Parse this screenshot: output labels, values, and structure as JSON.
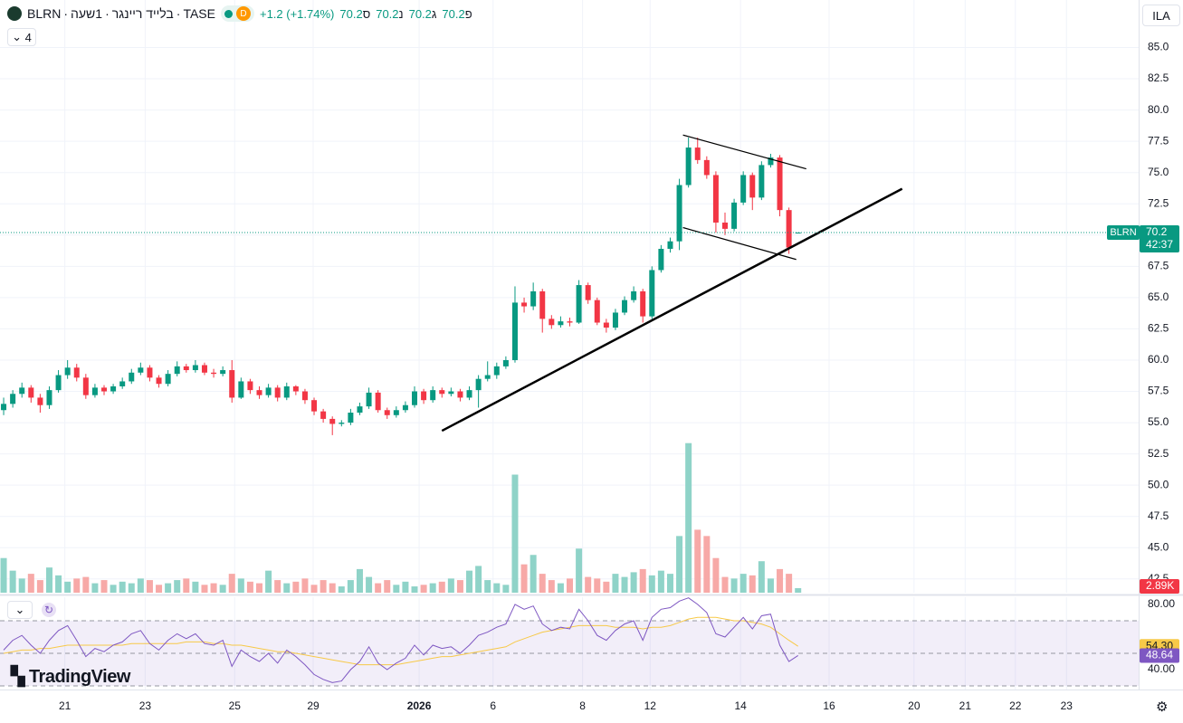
{
  "header": {
    "symbol": "BLRN",
    "name": "בלייד ריינגר",
    "interval": "1שעה",
    "exchange": "TASE",
    "badge": "D",
    "change": "+1.2 (+1.74%)",
    "ohlc_labels": [
      "פ",
      "ג",
      "נ",
      "ס"
    ],
    "indicators_count": "4",
    "currency": "ILA",
    "logo": "TradingView",
    "countdown": "42:37"
  },
  "chart_data": {
    "type": "candlestick",
    "candles": [
      [
        56.0,
        57.0,
        55.6,
        56.5
      ],
      [
        56.5,
        57.6,
        56.2,
        57.3
      ],
      [
        57.3,
        58.2,
        57.0,
        57.8
      ],
      [
        57.8,
        58.0,
        56.6,
        57.0
      ],
      [
        57.0,
        57.3,
        55.8,
        56.4
      ],
      [
        56.4,
        57.9,
        56.1,
        57.6
      ],
      [
        57.6,
        59.2,
        57.4,
        58.8
      ],
      [
        58.8,
        60.0,
        58.5,
        59.4
      ],
      [
        59.4,
        59.7,
        58.3,
        58.6
      ],
      [
        58.6,
        58.9,
        56.9,
        57.2
      ],
      [
        57.2,
        58.1,
        57.0,
        57.8
      ],
      [
        57.8,
        58.0,
        57.2,
        57.5
      ],
      [
        57.5,
        58.1,
        57.3,
        57.9
      ],
      [
        57.9,
        58.6,
        57.7,
        58.3
      ],
      [
        58.3,
        59.3,
        58.1,
        59.0
      ],
      [
        59.0,
        59.8,
        58.8,
        59.4
      ],
      [
        59.4,
        59.6,
        58.3,
        58.6
      ],
      [
        58.6,
        58.8,
        57.8,
        58.1
      ],
      [
        58.1,
        59.2,
        57.9,
        58.9
      ],
      [
        58.9,
        59.9,
        58.7,
        59.5
      ],
      [
        59.5,
        59.7,
        59.0,
        59.2
      ],
      [
        59.2,
        60.0,
        59.0,
        59.6
      ],
      [
        59.6,
        59.8,
        58.8,
        59.0
      ],
      [
        59.0,
        59.3,
        58.6,
        58.9
      ],
      [
        58.9,
        59.5,
        58.7,
        59.2
      ],
      [
        59.2,
        60.0,
        56.6,
        57.0
      ],
      [
        57.0,
        58.6,
        56.9,
        58.3
      ],
      [
        58.3,
        58.5,
        57.3,
        57.6
      ],
      [
        57.6,
        57.9,
        56.9,
        57.2
      ],
      [
        57.2,
        58.1,
        57.0,
        57.8
      ],
      [
        57.8,
        58.0,
        56.7,
        57.0
      ],
      [
        57.0,
        58.2,
        56.8,
        57.9
      ],
      [
        57.9,
        58.0,
        57.2,
        57.5
      ],
      [
        57.5,
        57.7,
        56.5,
        56.8
      ],
      [
        56.8,
        57.0,
        55.6,
        55.9
      ],
      [
        55.9,
        56.1,
        55.0,
        55.3
      ],
      [
        55.3,
        55.5,
        54.0,
        54.9
      ],
      [
        54.9,
        55.2,
        54.7,
        55.0
      ],
      [
        55.0,
        56.1,
        54.8,
        55.8
      ],
      [
        55.8,
        56.6,
        55.6,
        56.3
      ],
      [
        56.3,
        57.8,
        56.1,
        57.4
      ],
      [
        57.4,
        57.6,
        55.8,
        56.0
      ],
      [
        56.0,
        56.2,
        55.3,
        55.6
      ],
      [
        55.6,
        56.3,
        55.4,
        56.0
      ],
      [
        56.0,
        56.7,
        55.8,
        56.4
      ],
      [
        56.4,
        57.9,
        56.2,
        57.5
      ],
      [
        57.5,
        57.7,
        56.5,
        56.8
      ],
      [
        56.8,
        57.9,
        56.6,
        57.6
      ],
      [
        57.6,
        57.8,
        57.0,
        57.3
      ],
      [
        57.3,
        57.8,
        57.1,
        57.5
      ],
      [
        57.5,
        57.7,
        56.7,
        57.0
      ],
      [
        57.0,
        57.9,
        56.8,
        57.6
      ],
      [
        57.6,
        58.8,
        56.2,
        58.5
      ],
      [
        58.5,
        59.9,
        58.3,
        58.8
      ],
      [
        58.8,
        59.8,
        58.5,
        59.5
      ],
      [
        59.5,
        60.3,
        59.3,
        60.0
      ],
      [
        60.0,
        65.9,
        59.8,
        64.6
      ],
      [
        64.6,
        65.0,
        63.8,
        64.3
      ],
      [
        64.3,
        66.2,
        64.0,
        65.5
      ],
      [
        65.5,
        65.7,
        62.2,
        63.3
      ],
      [
        63.3,
        63.6,
        62.5,
        62.8
      ],
      [
        62.8,
        63.5,
        62.6,
        63.1
      ],
      [
        63.1,
        63.4,
        62.7,
        63.0
      ],
      [
        63.0,
        66.4,
        62.9,
        66.0
      ],
      [
        66.0,
        66.2,
        64.5,
        64.8
      ],
      [
        64.8,
        65.0,
        62.8,
        63.0
      ],
      [
        63.0,
        63.3,
        62.2,
        62.6
      ],
      [
        62.6,
        64.1,
        62.4,
        63.8
      ],
      [
        63.8,
        65.1,
        63.6,
        64.8
      ],
      [
        64.8,
        65.9,
        64.6,
        65.5
      ],
      [
        65.5,
        65.7,
        63.0,
        63.5
      ],
      [
        63.5,
        67.5,
        63.3,
        67.2
      ],
      [
        67.2,
        69.2,
        67.0,
        68.9
      ],
      [
        68.9,
        69.8,
        68.6,
        69.5
      ],
      [
        69.5,
        74.5,
        68.8,
        74.0
      ],
      [
        74.0,
        77.8,
        73.8,
        77.0
      ],
      [
        77.0,
        77.8,
        75.7,
        76.0
      ],
      [
        76.0,
        76.3,
        74.5,
        74.8
      ],
      [
        74.8,
        75.1,
        70.2,
        71.0
      ],
      [
        71.0,
        71.8,
        70.0,
        70.5
      ],
      [
        70.5,
        72.9,
        70.3,
        72.6
      ],
      [
        72.6,
        75.1,
        72.4,
        74.8
      ],
      [
        74.8,
        75.0,
        72.0,
        73.0
      ],
      [
        73.0,
        75.9,
        72.8,
        75.6
      ],
      [
        75.6,
        76.5,
        75.4,
        76.2
      ],
      [
        76.2,
        76.4,
        71.5,
        72.0
      ],
      [
        72.0,
        72.2,
        68.5,
        69.0
      ],
      [
        70.2,
        70.2,
        70.2,
        70.2
      ]
    ],
    "up_color": "#089981",
    "down_color": "#f23645",
    "xlim": [
      -0.4,
      124.3
    ],
    "xticks": [
      {
        "value": 6.7,
        "label": "21"
      },
      {
        "value": 15.5,
        "label": "23"
      },
      {
        "value": 25.3,
        "label": "25"
      },
      {
        "value": 33.9,
        "label": "29"
      },
      {
        "value": 45.5,
        "label": "2026"
      },
      {
        "value": 53.6,
        "label": "6"
      },
      {
        "value": 63.4,
        "label": "8"
      },
      {
        "value": 70.8,
        "label": "12"
      },
      {
        "value": 80.7,
        "label": "14"
      },
      {
        "value": 90.4,
        "label": "16"
      },
      {
        "value": 99.7,
        "label": "20"
      },
      {
        "value": 105.3,
        "label": "21"
      },
      {
        "value": 110.8,
        "label": "22"
      },
      {
        "value": 116.4,
        "label": "23"
      }
    ],
    "ylim": [
      41.4,
      88.8
    ],
    "yticks": [
      {
        "value": 42.5,
        "label": "42.5"
      },
      {
        "value": 45,
        "label": "45.0"
      },
      {
        "value": 47.5,
        "label": "47.5"
      },
      {
        "value": 50,
        "label": "50.0"
      },
      {
        "value": 52.5,
        "label": "52.5"
      },
      {
        "value": 55,
        "label": "55.0"
      },
      {
        "value": 57.5,
        "label": "57.5"
      },
      {
        "value": 60,
        "label": "60.0"
      },
      {
        "value": 62.5,
        "label": "62.5"
      },
      {
        "value": 65,
        "label": "65.0"
      },
      {
        "value": 67.5,
        "label": "67.5"
      },
      {
        "value": 70,
        "label": "70.0"
      },
      {
        "value": 72.5,
        "label": "72.5"
      },
      {
        "value": 75,
        "label": "75.0"
      },
      {
        "value": 77.5,
        "label": "77.5"
      },
      {
        "value": 80,
        "label": "80.0"
      },
      {
        "value": 82.5,
        "label": "82.5"
      },
      {
        "value": 85,
        "label": "85.0"
      }
    ],
    "grid": true,
    "trendlines": [
      {
        "from": [
          48.0,
          54.35
        ],
        "to": [
          98.4,
          73.7
        ],
        "width": 2.5
      },
      {
        "from": [
          74.4,
          78.0
        ],
        "to": [
          87.9,
          75.3
        ],
        "width": 1.2
      },
      {
        "from": [
          74.4,
          70.6
        ],
        "to": [
          86.8,
          68.05
        ],
        "width": 1.2
      }
    ],
    "volume": {
      "values": [
        22000,
        14000,
        9000,
        12000,
        8000,
        16000,
        11000,
        7000,
        9000,
        10000,
        6000,
        8000,
        5000,
        7000,
        6000,
        9000,
        8000,
        5000,
        6000,
        8000,
        9000,
        7000,
        5000,
        6000,
        5000,
        12000,
        9000,
        7000,
        6000,
        14000,
        8000,
        6000,
        7000,
        9000,
        5000,
        8000,
        6000,
        4000,
        8000,
        15000,
        10000,
        6000,
        8000,
        5000,
        7000,
        4000,
        5000,
        6000,
        7000,
        9000,
        8000,
        14000,
        17000,
        8000,
        6000,
        5000,
        75000,
        18000,
        24000,
        12000,
        8000,
        6000,
        9000,
        28000,
        10000,
        9000,
        7000,
        12000,
        10000,
        13000,
        15000,
        11000,
        14000,
        12000,
        36000,
        95000,
        40000,
        36000,
        22000,
        10000,
        9000,
        12000,
        11000,
        20000,
        9000,
        15000,
        12000,
        2890
      ],
      "last_label": "2.89K",
      "ylim": [
        0,
        100000
      ],
      "up_color": "#8fd3c8",
      "down_color": "#f7a9a7"
    },
    "rsi": {
      "values": [
        52,
        58,
        61,
        55,
        50,
        58,
        64,
        67,
        58,
        48,
        53,
        51,
        55,
        57,
        62,
        64,
        56,
        52,
        58,
        62,
        59,
        62,
        56,
        55,
        58,
        42,
        52,
        48,
        45,
        50,
        44,
        52,
        48,
        43,
        37,
        34,
        32,
        33,
        40,
        45,
        54,
        44,
        40,
        44,
        47,
        55,
        49,
        55,
        53,
        54,
        50,
        55,
        61,
        63,
        66,
        68,
        80,
        77,
        79,
        68,
        64,
        66,
        65,
        77,
        70,
        61,
        58,
        64,
        68,
        70,
        58,
        72,
        77,
        78,
        82,
        84,
        80,
        75,
        62,
        60,
        66,
        72,
        65,
        73,
        74,
        55,
        45,
        48.64
      ],
      "last_label": "48.64",
      "color": "#7e57c2",
      "ma": [
        50,
        51,
        52,
        52,
        53,
        53,
        54,
        55,
        55,
        55,
        55,
        55,
        55,
        55,
        56,
        56,
        56,
        56,
        56,
        56,
        57,
        57,
        57,
        56,
        56,
        55,
        55,
        54,
        53,
        52,
        51,
        51,
        50,
        49,
        48,
        47,
        46,
        45,
        44,
        43,
        43,
        43,
        43,
        43,
        44,
        45,
        46,
        47,
        48,
        48,
        49,
        50,
        51,
        52,
        53,
        54,
        57,
        59,
        61,
        63,
        64,
        65,
        66,
        67,
        67,
        67,
        67,
        66,
        66,
        66,
        65,
        66,
        66,
        67,
        69,
        71,
        72,
        72,
        72,
        71,
        70,
        70,
        69,
        68,
        66,
        62,
        58,
        54.3
      ],
      "ma_last_label": "54.30",
      "ma_color": "#f7c948",
      "ylim": [
        27.8,
        84.4
      ],
      "yticks": [
        {
          "value": 80,
          "label": "80.00"
        },
        {
          "value": 40,
          "label": "40.00"
        }
      ],
      "levels": [
        30,
        50,
        70
      ]
    }
  }
}
